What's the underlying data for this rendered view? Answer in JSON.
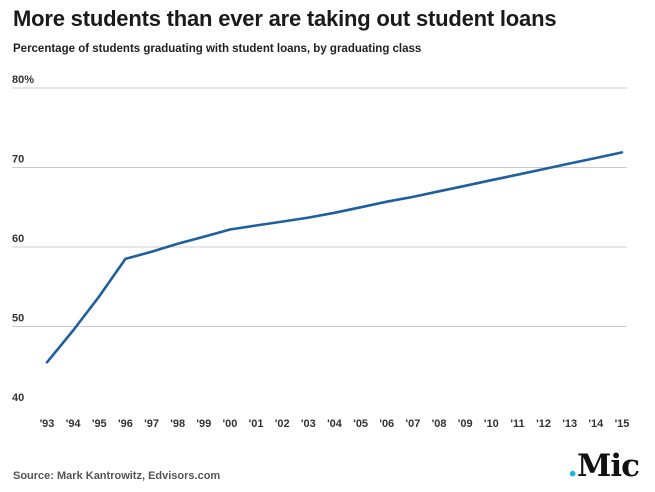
{
  "header": {
    "title": "More students than ever are taking out student loans",
    "subtitle": "Percentage of students graduating with student loans, by graduating class"
  },
  "footer": {
    "source": "Source: Mark Kantrowitz, Edvisors.com",
    "logo_dot": ".",
    "logo_text": "Mic"
  },
  "colors": {
    "line": "#1f5fa0",
    "grid": "#cccccc",
    "logo_dot": "#1fb3e8"
  },
  "chart_data": {
    "type": "line",
    "title": "More students than ever are taking out student loans",
    "subtitle": "Percentage of students graduating with student loans, by graduating class",
    "xlabel": "",
    "ylabel": "",
    "ylim": [
      40,
      80
    ],
    "yticks": [
      40,
      50,
      60,
      70,
      80
    ],
    "ytick_labels": [
      "40",
      "50",
      "60",
      "70",
      "80%"
    ],
    "grid": true,
    "x": [
      "'93",
      "'94",
      "'95",
      "'96",
      "'97",
      "'98",
      "'99",
      "'00",
      "'01",
      "'02",
      "'03",
      "'04",
      "'05",
      "'06",
      "'07",
      "'08",
      "'09",
      "'10",
      "'11",
      "'12",
      "'13",
      "'14",
      "'15"
    ],
    "series": [
      {
        "values": [
          45.5,
          49.5,
          53.8,
          58.5,
          59.4,
          60.4,
          61.3,
          62.2,
          62.7,
          63.2,
          63.7,
          64.3,
          65.0,
          65.7,
          66.3,
          67.0,
          67.7,
          68.4,
          69.1,
          69.8,
          70.5,
          71.2,
          71.9
        ]
      }
    ]
  }
}
